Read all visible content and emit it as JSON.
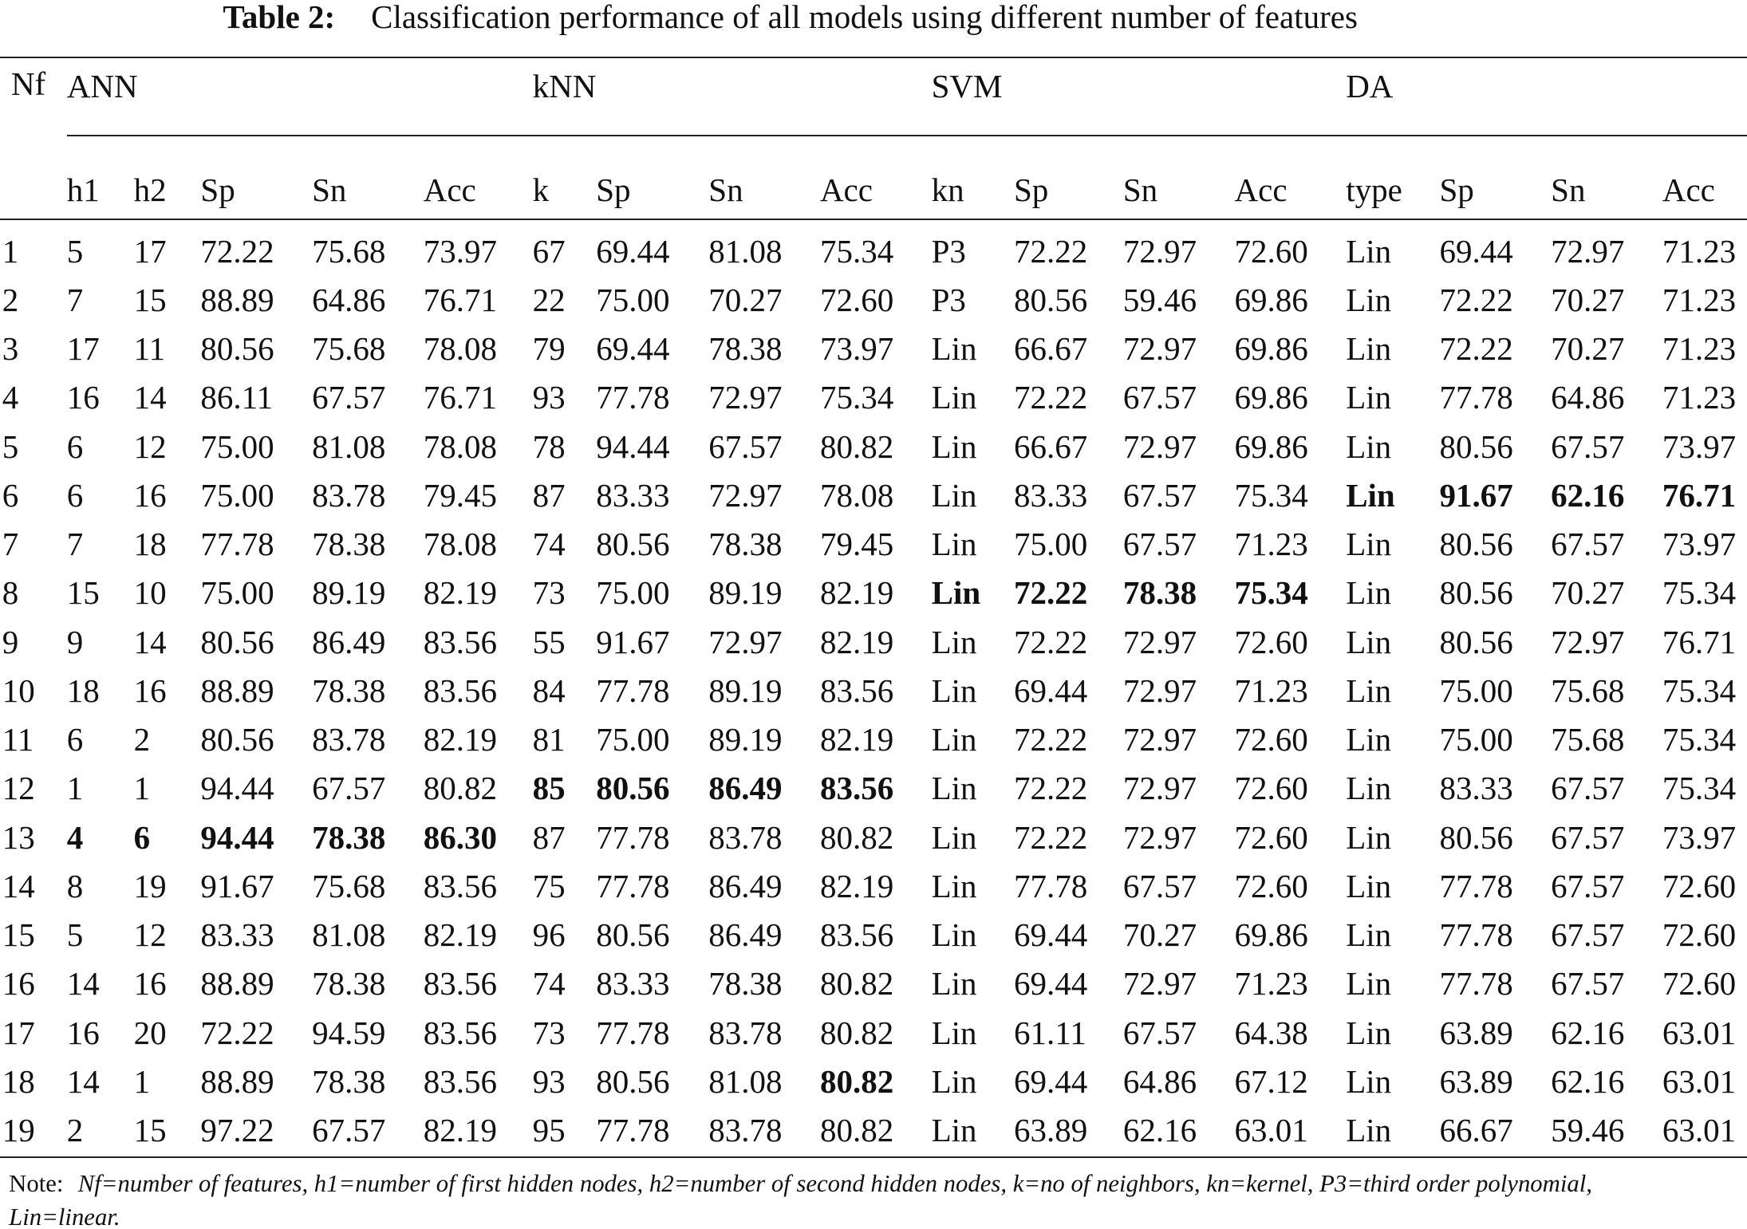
{
  "title": {
    "label": "Table 2:",
    "text": "Classification performance of all models using different number of features"
  },
  "table": {
    "groups": [
      "ANN",
      "kNN",
      "SVM",
      "DA"
    ],
    "first_header": "Nf",
    "columns": [
      "h1",
      "h2",
      "Sp",
      "Sn",
      "Acc",
      "k",
      "Sp",
      "Sn",
      "Acc",
      "kn",
      "Sp",
      "Sn",
      "Acc",
      "type",
      "Sp",
      "Sn",
      "Acc"
    ],
    "rows": [
      [
        "1",
        "5",
        "17",
        "72.22",
        "75.68",
        "73.97",
        "67",
        "69.44",
        "81.08",
        "75.34",
        "P3",
        "72.22",
        "72.97",
        "72.60",
        "Lin",
        "69.44",
        "72.97",
        "71.23"
      ],
      [
        "2",
        "7",
        "15",
        "88.89",
        "64.86",
        "76.71",
        "22",
        "75.00",
        "70.27",
        "72.60",
        "P3",
        "80.56",
        "59.46",
        "69.86",
        "Lin",
        "72.22",
        "70.27",
        "71.23"
      ],
      [
        "3",
        "17",
        "11",
        "80.56",
        "75.68",
        "78.08",
        "79",
        "69.44",
        "78.38",
        "73.97",
        "Lin",
        "66.67",
        "72.97",
        "69.86",
        "Lin",
        "72.22",
        "70.27",
        "71.23"
      ],
      [
        "4",
        "16",
        "14",
        "86.11",
        "67.57",
        "76.71",
        "93",
        "77.78",
        "72.97",
        "75.34",
        "Lin",
        "72.22",
        "67.57",
        "69.86",
        "Lin",
        "77.78",
        "64.86",
        "71.23"
      ],
      [
        "5",
        "6",
        "12",
        "75.00",
        "81.08",
        "78.08",
        "78",
        "94.44",
        "67.57",
        "80.82",
        "Lin",
        "66.67",
        "72.97",
        "69.86",
        "Lin",
        "80.56",
        "67.57",
        "73.97"
      ],
      [
        "6",
        "6",
        "16",
        "75.00",
        "83.78",
        "79.45",
        "87",
        "83.33",
        "72.97",
        "78.08",
        "Lin",
        "83.33",
        "67.57",
        "75.34",
        "Lin",
        "91.67",
        "62.16",
        "76.71"
      ],
      [
        "7",
        "7",
        "18",
        "77.78",
        "78.38",
        "78.08",
        "74",
        "80.56",
        "78.38",
        "79.45",
        "Lin",
        "75.00",
        "67.57",
        "71.23",
        "Lin",
        "80.56",
        "67.57",
        "73.97"
      ],
      [
        "8",
        "15",
        "10",
        "75.00",
        "89.19",
        "82.19",
        "73",
        "75.00",
        "89.19",
        "82.19",
        "Lin",
        "72.22",
        "78.38",
        "75.34",
        "Lin",
        "80.56",
        "70.27",
        "75.34"
      ],
      [
        "9",
        "9",
        "14",
        "80.56",
        "86.49",
        "83.56",
        "55",
        "91.67",
        "72.97",
        "82.19",
        "Lin",
        "72.22",
        "72.97",
        "72.60",
        "Lin",
        "80.56",
        "72.97",
        "76.71"
      ],
      [
        "10",
        "18",
        "16",
        "88.89",
        "78.38",
        "83.56",
        "84",
        "77.78",
        "89.19",
        "83.56",
        "Lin",
        "69.44",
        "72.97",
        "71.23",
        "Lin",
        "75.00",
        "75.68",
        "75.34"
      ],
      [
        "11",
        "6",
        "2",
        "80.56",
        "83.78",
        "82.19",
        "81",
        "75.00",
        "89.19",
        "82.19",
        "Lin",
        "72.22",
        "72.97",
        "72.60",
        "Lin",
        "75.00",
        "75.68",
        "75.34"
      ],
      [
        "12",
        "1",
        "1",
        "94.44",
        "67.57",
        "80.82",
        "85",
        "80.56",
        "86.49",
        "83.56",
        "Lin",
        "72.22",
        "72.97",
        "72.60",
        "Lin",
        "83.33",
        "67.57",
        "75.34"
      ],
      [
        "13",
        "4",
        "6",
        "94.44",
        "78.38",
        "86.30",
        "87",
        "77.78",
        "83.78",
        "80.82",
        "Lin",
        "72.22",
        "72.97",
        "72.60",
        "Lin",
        "80.56",
        "67.57",
        "73.97"
      ],
      [
        "14",
        "8",
        "19",
        "91.67",
        "75.68",
        "83.56",
        "75",
        "77.78",
        "86.49",
        "82.19",
        "Lin",
        "77.78",
        "67.57",
        "72.60",
        "Lin",
        "77.78",
        "67.57",
        "72.60"
      ],
      [
        "15",
        "5",
        "12",
        "83.33",
        "81.08",
        "82.19",
        "96",
        "80.56",
        "86.49",
        "83.56",
        "Lin",
        "69.44",
        "70.27",
        "69.86",
        "Lin",
        "77.78",
        "67.57",
        "72.60"
      ],
      [
        "16",
        "14",
        "16",
        "88.89",
        "78.38",
        "83.56",
        "74",
        "83.33",
        "78.38",
        "80.82",
        "Lin",
        "69.44",
        "72.97",
        "71.23",
        "Lin",
        "77.78",
        "67.57",
        "72.60"
      ],
      [
        "17",
        "16",
        "20",
        "72.22",
        "94.59",
        "83.56",
        "73",
        "77.78",
        "83.78",
        "80.82",
        "Lin",
        "61.11",
        "67.57",
        "64.38",
        "Lin",
        "63.89",
        "62.16",
        "63.01"
      ],
      [
        "18",
        "14",
        "1",
        "88.89",
        "78.38",
        "83.56",
        "93",
        "80.56",
        "81.08",
        "80.82",
        "Lin",
        "69.44",
        "64.86",
        "67.12",
        "Lin",
        "63.89",
        "62.16",
        "63.01"
      ],
      [
        "19",
        "2",
        "15",
        "97.22",
        "67.57",
        "82.19",
        "95",
        "77.78",
        "83.78",
        "80.82",
        "Lin",
        "63.89",
        "62.16",
        "63.01",
        "Lin",
        "66.67",
        "59.46",
        "63.01"
      ]
    ],
    "bold_cells": [
      [
        5,
        14
      ],
      [
        5,
        15
      ],
      [
        5,
        16
      ],
      [
        5,
        17
      ],
      [
        7,
        10
      ],
      [
        7,
        11
      ],
      [
        7,
        12
      ],
      [
        7,
        13
      ],
      [
        11,
        6
      ],
      [
        11,
        7
      ],
      [
        11,
        8
      ],
      [
        11,
        9
      ],
      [
        12,
        1
      ],
      [
        12,
        2
      ],
      [
        12,
        3
      ],
      [
        12,
        4
      ],
      [
        12,
        5
      ],
      [
        17,
        9
      ]
    ]
  },
  "note": {
    "label": "Note:",
    "text": "Nf=number of features, h1=number of first hidden nodes, h2=number of second hidden nodes, k=no of neighbors, kn=kernel, P3=third order polynomial,",
    "text2": "Lin=linear."
  }
}
